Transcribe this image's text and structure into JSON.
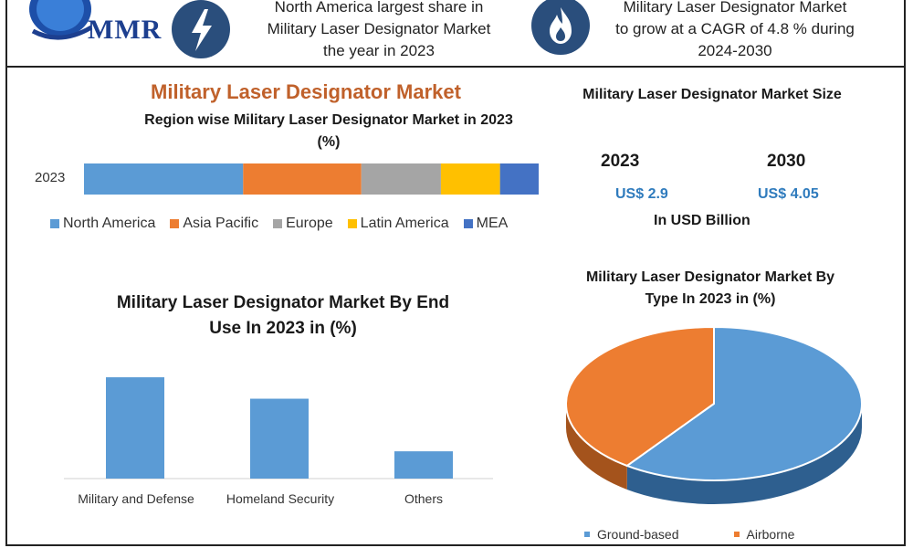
{
  "header": {
    "logo": "MMR",
    "left_text": [
      "North America largest share in",
      "Military Laser Designator Market",
      "the year in 2023"
    ],
    "right_text": [
      "Military Laser Designator Market",
      "to grow at a CAGR of 4.8 % during",
      "2024-2030"
    ],
    "icons": [
      "lightning-icon",
      "flame-icon"
    ]
  },
  "main_title": "Military Laser Designator Market",
  "market_size": {
    "title": "Military Laser Designator Market Size",
    "years": [
      "2023",
      "2030"
    ],
    "values": [
      "US$ 2.9",
      "US$ 4.05"
    ],
    "unit": "In USD Billion"
  },
  "colors": {
    "north_america": "#5b9bd5",
    "asia_pacific": "#ed7d31",
    "europe": "#a5a5a5",
    "latin_america": "#ffc000",
    "mea": "#4472c4",
    "title_accent": "#c0612b",
    "value_blue": "#2f7bbd"
  },
  "chart_data": [
    {
      "type": "bar",
      "orientation": "horizontal-stacked",
      "title": "Region wise Military  Laser Designator Market in 2023 (%)",
      "title_lines": [
        "Region wise Military  Laser Designator Market in 2023",
        "(%)"
      ],
      "categories": [
        "2023"
      ],
      "series": [
        {
          "name": "North America",
          "values": [
            35
          ]
        },
        {
          "name": "Asia Pacific",
          "values": [
            26
          ]
        },
        {
          "name": "Europe",
          "values": [
            17.5
          ]
        },
        {
          "name": "Latin America",
          "values": [
            13
          ]
        },
        {
          "name": "MEA",
          "values": [
            8.5
          ]
        }
      ],
      "xlim": [
        0,
        100
      ],
      "legend": "bottom"
    },
    {
      "type": "bar",
      "title": "Military Laser Designator Market By End Use In 2023 in (%)",
      "title_lines": [
        "Military Laser Designator Market By End",
        "Use In 2023 in (%)"
      ],
      "categories": [
        "Military and Defense",
        "Homeland Security",
        "Others"
      ],
      "values": [
        52,
        41,
        14
      ],
      "ylim": [
        0,
        60
      ],
      "grid": false
    },
    {
      "type": "pie",
      "title": "Military Laser Designator Market By Type In 2023 in (%)",
      "title_lines": [
        "Military Laser Designator Market By",
        "Type In 2023 in (%)"
      ],
      "categories": [
        "Ground-based",
        "Airborne"
      ],
      "values": [
        60,
        40
      ],
      "legend": "bottom"
    }
  ]
}
